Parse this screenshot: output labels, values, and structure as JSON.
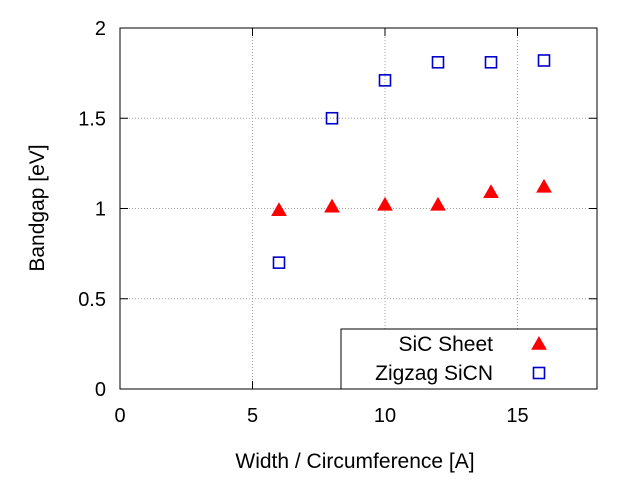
{
  "chart_data": {
    "type": "scatter",
    "xlabel": "Width / Circumference  [A]",
    "ylabel": "Bandgap  [eV]",
    "xlim": [
      0,
      18
    ],
    "ylim": [
      0,
      2
    ],
    "xticks": [
      0,
      5,
      10,
      15
    ],
    "xtick_labels": [
      "0",
      "5",
      "10",
      "15"
    ],
    "yticks": [
      0,
      0.5,
      1,
      1.5,
      2
    ],
    "ytick_labels": [
      "0",
      "0.5",
      "1",
      "1.5",
      "2"
    ],
    "grid": true,
    "legend_position": "bottom-right",
    "series": [
      {
        "name": "SiC Sheet",
        "marker": "filled-triangle",
        "color": "#ff0000",
        "x": [
          6,
          8,
          10,
          12,
          14,
          16
        ],
        "y": [
          0.99,
          1.01,
          1.02,
          1.02,
          1.09,
          1.12
        ]
      },
      {
        "name": "Zigzag SiCN",
        "marker": "open-square",
        "color": "#0000cc",
        "x": [
          6,
          8,
          10,
          12,
          14,
          16
        ],
        "y": [
          0.7,
          1.5,
          1.71,
          1.81,
          1.81,
          1.82
        ]
      }
    ]
  }
}
